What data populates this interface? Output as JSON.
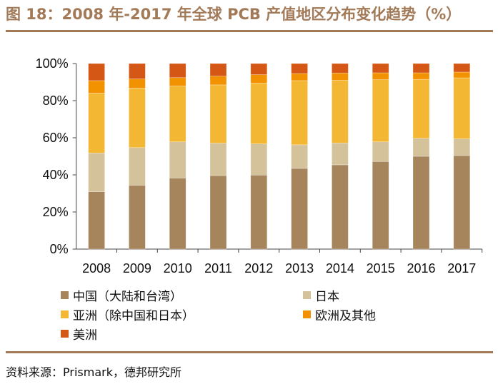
{
  "title": "图 18：2008 年-2017 年全球 PCB 产值地区分布变化趋势（%）",
  "source": "资料来源：Prismark，德邦研究所",
  "chart_data": {
    "type": "bar",
    "stacked": true,
    "categories": [
      "2008",
      "2009",
      "2010",
      "2011",
      "2012",
      "2013",
      "2014",
      "2015",
      "2016",
      "2017"
    ],
    "ylim": [
      0,
      100
    ],
    "yticks": [
      "0%",
      "20%",
      "40%",
      "60%",
      "80%",
      "100%"
    ],
    "ytick_values": [
      0,
      20,
      40,
      60,
      80,
      100
    ],
    "grid": false,
    "legend_position": "bottom",
    "series": [
      {
        "name": "中国（大陆和台湾）",
        "color": "#A6845C",
        "values": [
          30.9,
          34.4,
          38.3,
          39.6,
          39.9,
          43.5,
          45.4,
          47.2,
          50.0,
          50.4
        ]
      },
      {
        "name": "日本",
        "color": "#D4C29B",
        "values": [
          20.9,
          20.3,
          19.5,
          17.5,
          16.8,
          12.7,
          11.8,
          10.6,
          9.7,
          9.0
        ]
      },
      {
        "name": "亚洲（除中国和日本）",
        "color": "#F4B733",
        "values": [
          32.3,
          32.1,
          30.1,
          31.4,
          32.8,
          34.6,
          33.8,
          33.5,
          31.8,
          32.9
        ]
      },
      {
        "name": "欧洲及其他",
        "color": "#F39200",
        "values": [
          6.7,
          4.9,
          4.5,
          4.7,
          4.5,
          3.8,
          3.9,
          3.7,
          3.5,
          3.1
        ]
      },
      {
        "name": "美洲",
        "color": "#D55716",
        "values": [
          9.2,
          8.3,
          7.6,
          6.8,
          6.0,
          5.4,
          5.1,
          5.0,
          5.0,
          4.6
        ]
      }
    ]
  }
}
